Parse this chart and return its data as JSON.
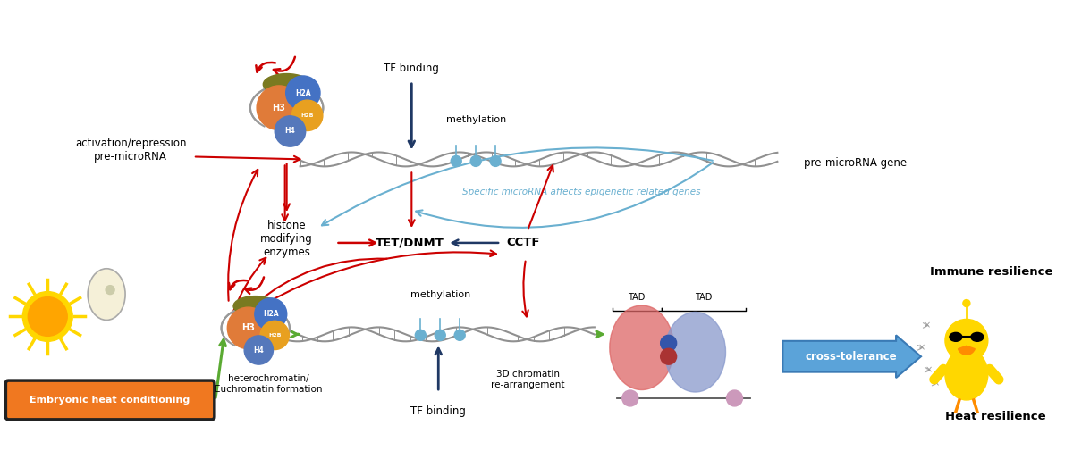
{
  "bg_color": "#ffffff",
  "fig_width": 12.0,
  "fig_height": 5.14,
  "labels": {
    "tf_binding_top": "TF binding",
    "methylation_top": "methylation",
    "pre_microrna_gene": "pre-microRNA gene",
    "activation_repression": "activation/repression\npre-microRNA",
    "specific_microrna": "Specific microRNA affects epigenetic related genes",
    "histone": "histone\nmodifying\nenzymes",
    "tet_dnmt": "TET/DNMT",
    "cctf": "CCTF",
    "methylation_bot": "methylation",
    "heterochromatin": "heterochromatin/\nEuchromatin formation",
    "3d_chromatin": "3D chromatin\nre-arrangement",
    "tf_binding_bot": "TF binding",
    "tad": "TAD",
    "tad2": "TAD",
    "immune_resilience": "Immune resilience",
    "heat_resilience": "Heat resilience",
    "cross_tolerance": "cross-tolerance",
    "embryonic": "Embryonic heat conditioning"
  },
  "colors": {
    "red_arrow": "#cc0000",
    "blue_arrow": "#4472c4",
    "green_arrow": "#5aaa32",
    "orange_box": "#f07820",
    "light_blue_arrow": "#6ab0d0",
    "dark_blue_arrow": "#1f3864",
    "histone_h3": "#e07b39",
    "histone_h2a": "#4472c4",
    "histone_h2b_green": "#70ad47",
    "histone_h2b_yellow": "#e8a020",
    "histone_h4": "#5578bb",
    "dna_color": "#909090"
  }
}
